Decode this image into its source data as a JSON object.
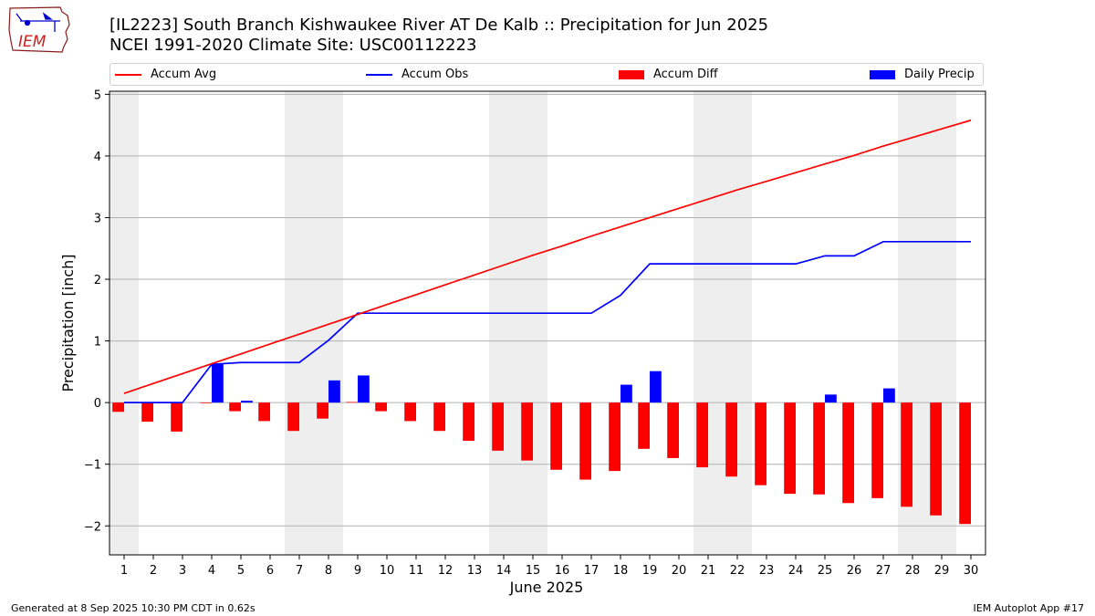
{
  "header": {
    "title_line1": "[IL2223] South Branch Kishwaukee River  AT De Kalb :: Precipitation for Jun 2025",
    "title_line2": "NCEI 1991-2020 Climate Site: USC00112223",
    "logo_text": "IEM"
  },
  "legend": {
    "items": [
      {
        "label": "Accum Avg",
        "color": "#ff0000",
        "kind": "line"
      },
      {
        "label": "Accum Obs",
        "color": "#0000ff",
        "kind": "line"
      },
      {
        "label": "Accum Diff",
        "color": "#ff0000",
        "kind": "box"
      },
      {
        "label": "Daily Precip",
        "color": "#0000ff",
        "kind": "box"
      }
    ]
  },
  "footer": {
    "generated": "Generated at 8 Sep 2025 10:30 PM CDT in 0.62s",
    "app": "IEM Autoplot App #17"
  },
  "chart_data": {
    "type": "bar",
    "xlabel": "June 2025",
    "ylabel": "Precipitation [inch]",
    "xlim": [
      0.5,
      30.5
    ],
    "ylim": [
      -2.47,
      5.05
    ],
    "x_ticks": [
      1,
      2,
      3,
      4,
      5,
      6,
      7,
      8,
      9,
      10,
      11,
      12,
      13,
      14,
      15,
      16,
      17,
      18,
      19,
      20,
      21,
      22,
      23,
      24,
      25,
      26,
      27,
      28,
      29,
      30
    ],
    "y_ticks": [
      -2,
      -1,
      0,
      1,
      2,
      3,
      4,
      5
    ],
    "y_tick_labels": [
      "−2",
      "−1",
      "0",
      "1",
      "2",
      "3",
      "4",
      "5"
    ],
    "grid": "horizontal",
    "weekend_shading": [
      [
        0.5,
        1.5
      ],
      [
        6.5,
        8.5
      ],
      [
        13.5,
        15.5
      ],
      [
        20.5,
        22.5
      ],
      [
        27.5,
        29.5
      ]
    ],
    "colors": {
      "avg": "#ff0000",
      "obs": "#0000ff",
      "diff": "#ff0000",
      "daily": "#0000ff",
      "weekend": "#eeeeee",
      "grid": "#b0b0b0"
    },
    "series": [
      {
        "name": "Accum Avg",
        "kind": "line",
        "values": [
          0.15,
          0.31,
          0.47,
          0.63,
          0.79,
          0.95,
          1.11,
          1.27,
          1.43,
          1.59,
          1.75,
          1.91,
          2.07,
          2.23,
          2.39,
          2.54,
          2.7,
          2.85,
          3.0,
          3.15,
          3.3,
          3.45,
          3.59,
          3.73,
          3.87,
          4.01,
          4.16,
          4.3,
          4.44,
          4.58
        ]
      },
      {
        "name": "Accum Obs",
        "kind": "line",
        "values": [
          0.0,
          0.0,
          0.0,
          0.62,
          0.65,
          0.65,
          0.65,
          1.01,
          1.45,
          1.45,
          1.45,
          1.45,
          1.45,
          1.45,
          1.45,
          1.45,
          1.45,
          1.74,
          2.25,
          2.25,
          2.25,
          2.25,
          2.25,
          2.25,
          2.38,
          2.38,
          2.61,
          2.61,
          2.61,
          2.61
        ]
      },
      {
        "name": "Accum Diff",
        "kind": "bar",
        "values": [
          -0.15,
          -0.31,
          -0.47,
          -0.01,
          -0.14,
          -0.3,
          -0.46,
          -0.26,
          0.01,
          -0.14,
          -0.3,
          -0.46,
          -0.62,
          -0.78,
          -0.94,
          -1.09,
          -1.25,
          -1.11,
          -0.75,
          -0.9,
          -1.05,
          -1.2,
          -1.34,
          -1.48,
          -1.49,
          -1.63,
          -1.55,
          -1.69,
          -1.83,
          -1.97
        ]
      },
      {
        "name": "Daily Precip",
        "kind": "bar",
        "values": [
          0,
          0,
          0,
          0.62,
          0.03,
          0,
          0,
          0.36,
          0.44,
          0,
          0,
          0,
          0,
          0,
          0,
          0,
          0,
          0.29,
          0.51,
          0,
          0,
          0,
          0,
          0,
          0.13,
          0,
          0.23,
          0,
          0,
          0
        ]
      }
    ]
  }
}
